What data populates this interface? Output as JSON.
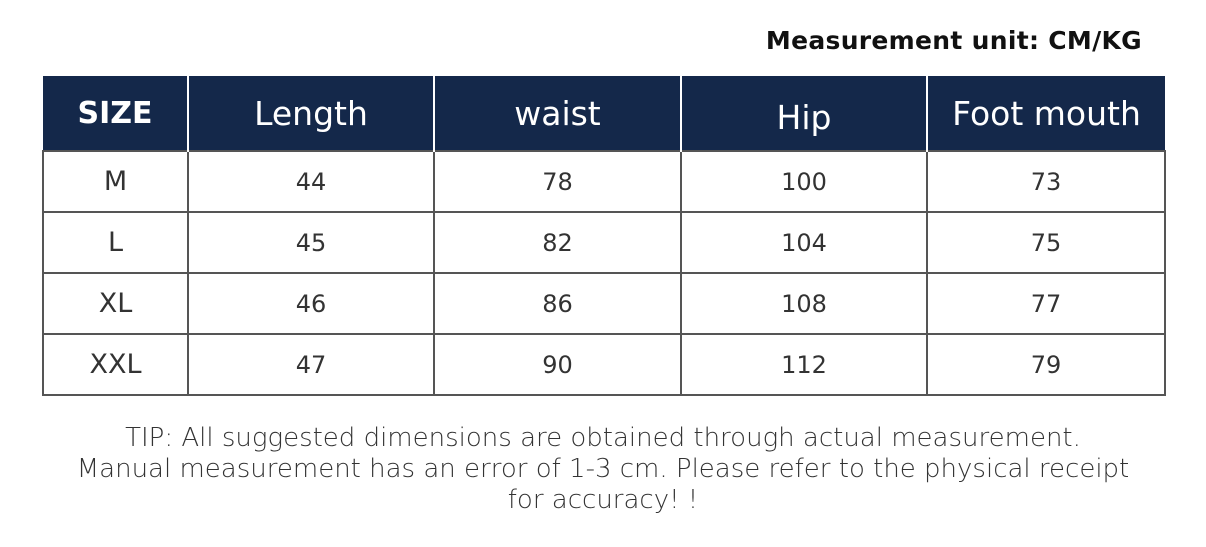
{
  "unit_label": "Measurement unit:  CM/KG",
  "table": {
    "headers": [
      "SIZE",
      "Length",
      "waist",
      "Hip",
      "Foot mouth"
    ],
    "rows": [
      [
        "M",
        "44",
        "78",
        "100",
        "73"
      ],
      [
        "L",
        "45",
        "82",
        "104",
        "75"
      ],
      [
        "XL",
        "46",
        "86",
        "108",
        "77"
      ],
      [
        "XXL",
        "47",
        "90",
        "112",
        "79"
      ]
    ]
  },
  "tip": {
    "line1": "TIP: All suggested dimensions are obtained through actual measurement.",
    "line2": "Manual measurement has an error of 1-3 cm. Please refer to the physical receipt",
    "line3": "for accuracy! !"
  },
  "colors": {
    "header_bg": "#14284a"
  }
}
